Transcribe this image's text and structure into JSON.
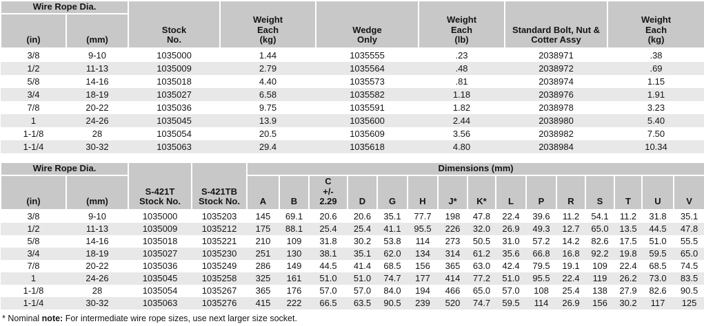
{
  "colors": {
    "header_bg": "#c8c8c8",
    "stripe_bg": "#e8e8e8",
    "row_bg": "#ffffff",
    "divider": "#ffffff",
    "text": "#141414"
  },
  "table1": {
    "header": {
      "wire_rope_dia": "Wire Rope Dia.",
      "in": "(in)",
      "mm": "(mm)",
      "stock_no": "Stock\nNo.",
      "weight_each_kg": "Weight\nEach\n(kg)",
      "wedge_only": "Wedge\nOnly",
      "weight_each_lb": "Weight\nEach\n(lb)",
      "bolt_assy": "Standard Bolt, Nut &\nCotter Assy",
      "weight_each_kg2": "Weight\nEach\n(kg)"
    },
    "rows": [
      [
        "3/8",
        "9-10",
        "1035000",
        "1.44",
        "1035555",
        ".23",
        "2038971",
        ".38"
      ],
      [
        "1/2",
        "11-13",
        "1035009",
        "2.79",
        "1035564",
        ".48",
        "2038972",
        ".69"
      ],
      [
        "5/8",
        "14-16",
        "1035018",
        "4.40",
        "1035573",
        ".81",
        "2038974",
        "1.15"
      ],
      [
        "3/4",
        "18-19",
        "1035027",
        "6.58",
        "1035582",
        "1.18",
        "2038976",
        "1.91"
      ],
      [
        "7/8",
        "20-22",
        "1035036",
        "9.75",
        "1035591",
        "1.82",
        "2038978",
        "3.23"
      ],
      [
        "1",
        "24-26",
        "1035045",
        "13.9",
        "1035600",
        "2.44",
        "2038980",
        "5.40"
      ],
      [
        "1-1/8",
        "28",
        "1035054",
        "20.5",
        "1035609",
        "3.56",
        "2038982",
        "7.50"
      ],
      [
        "1-1/4",
        "30-32",
        "1035063",
        "29.4",
        "1035618",
        "4.80",
        "2038984",
        "10.34"
      ]
    ]
  },
  "table2": {
    "header": {
      "wire_rope_dia": "Wire Rope Dia.",
      "in": "(in)",
      "mm": "(mm)",
      "s421t": "S-421T\nStock No.",
      "s421tb": "S-421TB\nStock No.",
      "dimensions": "Dimensions (mm)",
      "dims": [
        "A",
        "B",
        "C\n+/-\n2.29",
        "D",
        "G",
        "H",
        "J*",
        "K*",
        "L",
        "P",
        "R",
        "S",
        "T",
        "U",
        "V"
      ]
    },
    "rows": [
      [
        "3/8",
        "9-10",
        "1035000",
        "1035203",
        "145",
        "69.1",
        "20.6",
        "20.6",
        "35.1",
        "77.7",
        "198",
        "47.8",
        "22.4",
        "39.6",
        "11.2",
        "54.1",
        "11.2",
        "31.8",
        "35.1"
      ],
      [
        "1/2",
        "11-13",
        "1035009",
        "1035212",
        "175",
        "88.1",
        "25.4",
        "25.4",
        "41.1",
        "95.5",
        "226",
        "32.0",
        "26.9",
        "49.3",
        "12.7",
        "65.0",
        "13.5",
        "44.5",
        "47.8"
      ],
      [
        "5/8",
        "14-16",
        "1035018",
        "1035221",
        "210",
        "109",
        "31.8",
        "30.2",
        "53.8",
        "114",
        "273",
        "50.5",
        "31.0",
        "57.2",
        "14.2",
        "82.6",
        "17.5",
        "51.0",
        "55.5"
      ],
      [
        "3/4",
        "18-19",
        "1035027",
        "1035230",
        "251",
        "130",
        "38.1",
        "35.1",
        "62.0",
        "134",
        "314",
        "61.2",
        "35.6",
        "66.8",
        "16.8",
        "92.2",
        "19.8",
        "59.5",
        "65.0"
      ],
      [
        "7/8",
        "20-22",
        "1035036",
        "1035249",
        "286",
        "149",
        "44.5",
        "41.4",
        "68.5",
        "156",
        "365",
        "63.0",
        "42.4",
        "79.5",
        "19.1",
        "109",
        "22.4",
        "68.5",
        "74.5"
      ],
      [
        "1",
        "24-26",
        "1035045",
        "1035258",
        "325",
        "161",
        "51.0",
        "51.0",
        "74.7",
        "177",
        "414",
        "77.2",
        "51.0",
        "95.5",
        "22.4",
        "119",
        "26.2",
        "73.0",
        "83.5"
      ],
      [
        "1-1/8",
        "28",
        "1035054",
        "1035267",
        "365",
        "176",
        "57.0",
        "57.0",
        "84.0",
        "194",
        "466",
        "65.0",
        "57.0",
        "108",
        "25.4",
        "138",
        "27.9",
        "82.6",
        "90.5"
      ],
      [
        "1-1/4",
        "30-32",
        "1035063",
        "1035276",
        "415",
        "222",
        "66.5",
        "63.5",
        "90.5",
        "239",
        "520",
        "74.7",
        "59.5",
        "114",
        "26.9",
        "156",
        "30.2",
        "117",
        "125"
      ]
    ]
  },
  "footnote": {
    "prefix": "* Nominal ",
    "bold": "note:",
    "rest": " For intermediate wire rope sizes, use next larger size socket."
  }
}
